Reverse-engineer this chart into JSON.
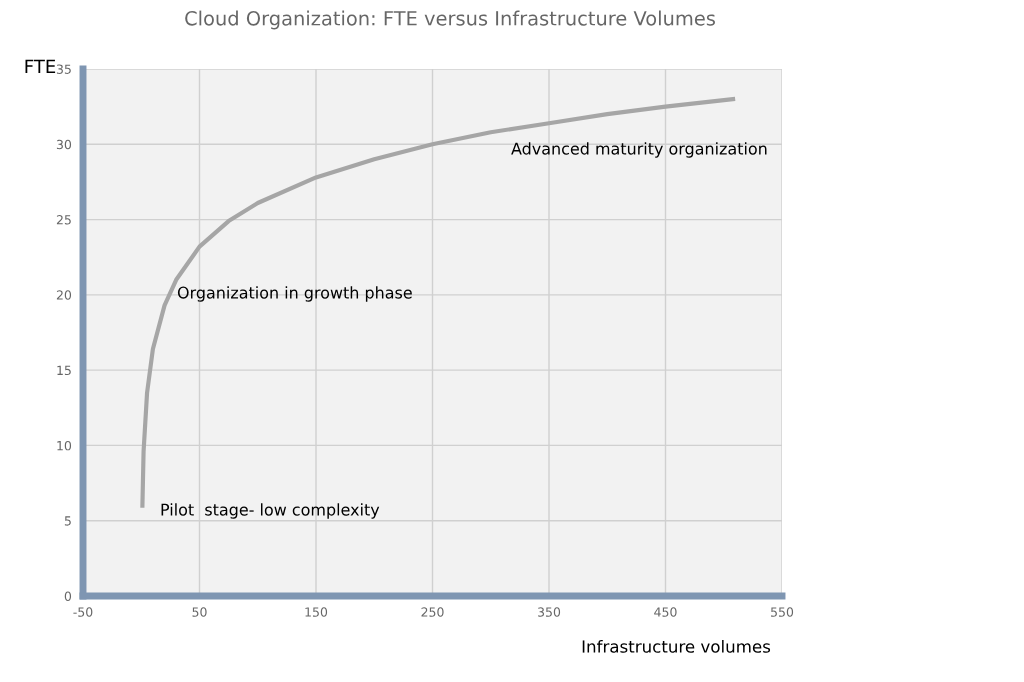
{
  "chart_data": {
    "type": "line",
    "title": "Cloud Organization: FTE versus Infrastructure Volumes",
    "xlabel": "Infrastructure volumes",
    "ylabel": "FTE",
    "x": [
      1,
      2,
      5,
      10,
      20,
      30,
      50,
      75,
      100,
      150,
      200,
      250,
      300,
      350,
      400,
      450,
      508
    ],
    "series": [
      {
        "color": "#a6a6a6",
        "values": [
          6,
          9.6,
          13.5,
          16.4,
          19.3,
          21,
          23.2,
          24.9,
          26.1,
          27.8,
          29,
          30,
          30.8,
          31.4,
          32,
          32.5,
          33
        ]
      }
    ],
    "xlim": [
      -50,
      550
    ],
    "xticks": [
      -50,
      50,
      150,
      250,
      350,
      450,
      550
    ],
    "ylim": [
      0,
      35
    ],
    "yticks": [
      0,
      5,
      10,
      15,
      20,
      25,
      30,
      35
    ],
    "grid": true,
    "marker": "none",
    "line_style": "solid",
    "annotations": [
      "Advanced maturity organization",
      "Organization in growth phase",
      "Pilot  stage- low complexity"
    ]
  }
}
